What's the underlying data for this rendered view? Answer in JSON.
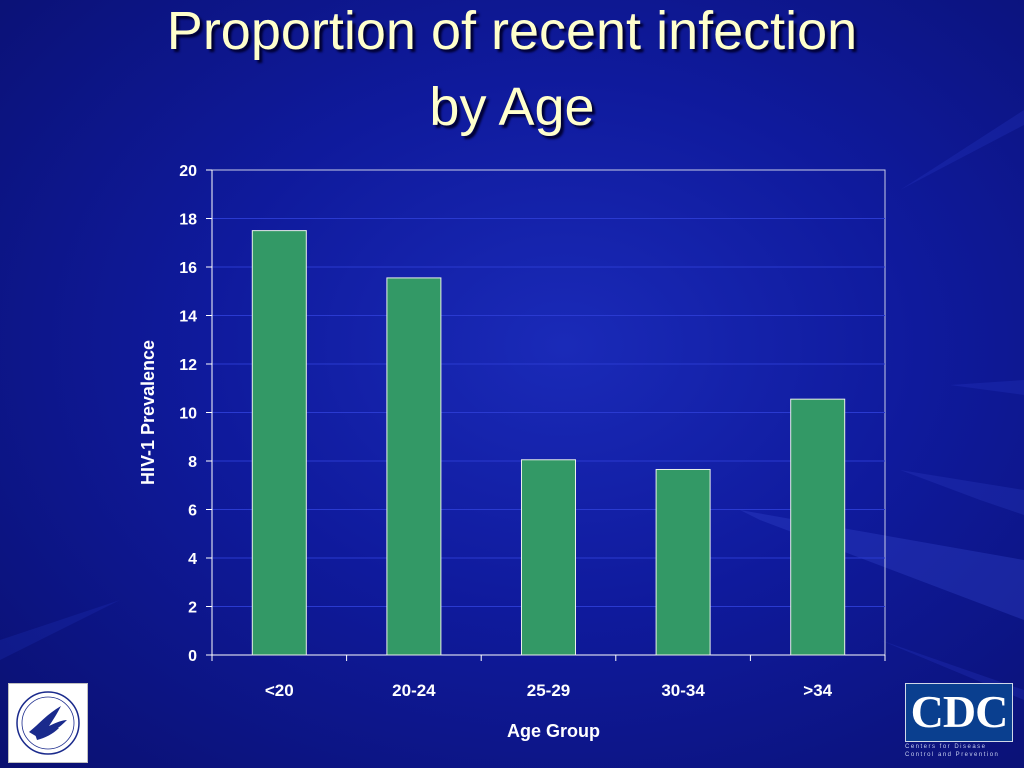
{
  "slide": {
    "title_line1": "Proportion of recent infection",
    "title_line2": "by Age"
  },
  "logos": {
    "left": "HHS",
    "right": "CDC",
    "right_subtitle_line1": "Centers for Disease",
    "right_subtitle_line2": "Control and Prevention"
  },
  "colors": {
    "background": "#0f1a9c",
    "bar_fill": "#339966",
    "title_text": "#ffffcc",
    "axis_text": "#ffffff"
  },
  "chart_data": {
    "type": "bar",
    "categories": [
      "<20",
      "20-24",
      "25-29",
      "30-34",
      ">34"
    ],
    "values": [
      17.5,
      15.55,
      8.05,
      7.65,
      10.55
    ],
    "title": "Proportion of recent infection by Age",
    "xlabel": "Age Group",
    "ylabel": "HIV-1 Prevalence",
    "ylim": [
      0,
      20
    ],
    "yticks": [
      0,
      2,
      4,
      6,
      8,
      10,
      12,
      14,
      16,
      18,
      20
    ],
    "grid": true,
    "legend": "none"
  }
}
